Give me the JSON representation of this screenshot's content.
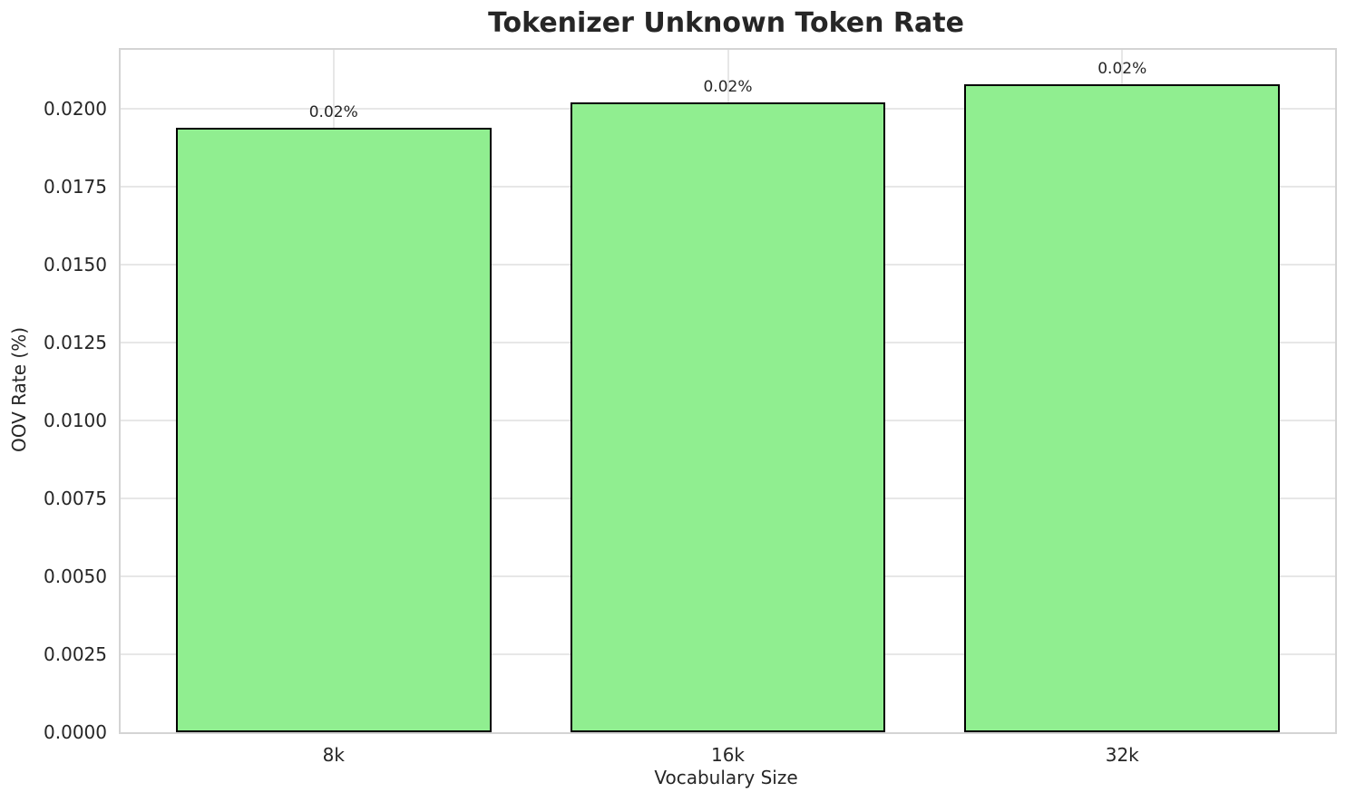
{
  "chart_data": {
    "type": "bar",
    "title": "Tokenizer Unknown Token Rate",
    "xlabel": "Vocabulary Size",
    "ylabel": "OOV Rate (%)",
    "categories": [
      "8k",
      "16k",
      "32k"
    ],
    "values": [
      0.0194,
      0.0202,
      0.0208
    ],
    "bar_labels": [
      "0.02%",
      "0.02%",
      "0.02%"
    ],
    "ytick_values": [
      0.0,
      0.0025,
      0.005,
      0.0075,
      0.01,
      0.0125,
      0.015,
      0.0175,
      0.02
    ],
    "ytick_labels": [
      "0.0000",
      "0.0025",
      "0.0050",
      "0.0075",
      "0.0100",
      "0.0125",
      "0.0150",
      "0.0175",
      "0.0200"
    ],
    "ylim": [
      0,
      0.0219
    ],
    "xlim": [
      -0.54,
      2.54
    ],
    "bar_width": 0.8,
    "grid": true,
    "legend_position": "none",
    "colors": {
      "bar_fill": "#90EE90",
      "bar_edge": "#000000",
      "grid": "#e7e7e7",
      "spine": "#d4d4d4",
      "text": "#262626",
      "background": "#ffffff"
    }
  }
}
